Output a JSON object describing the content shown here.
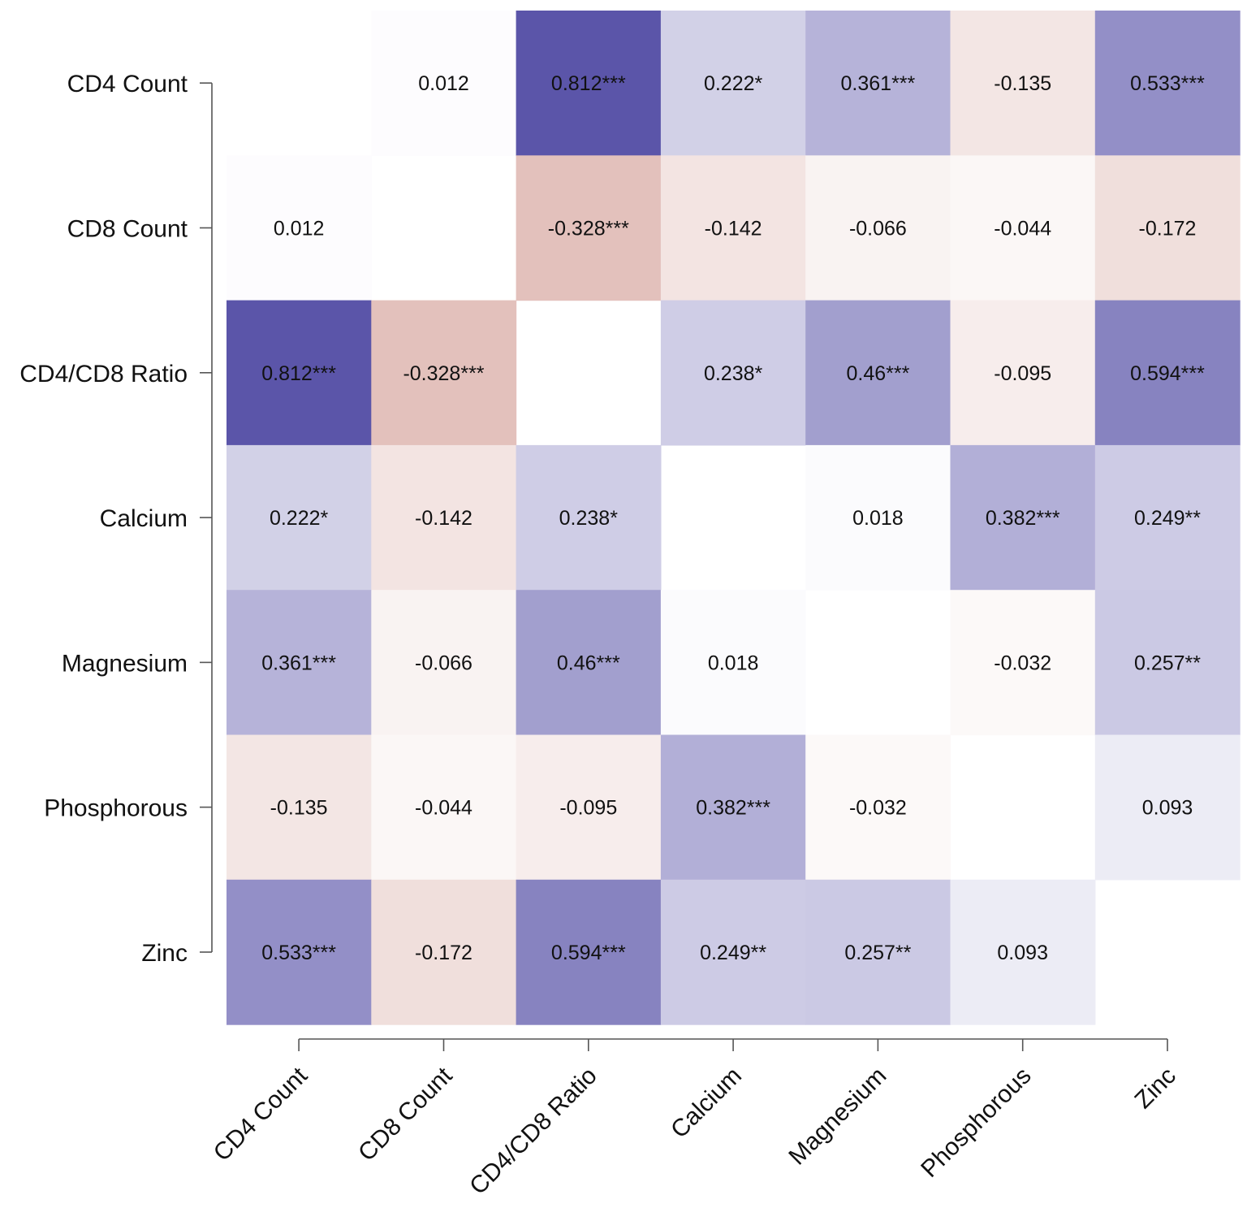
{
  "chart_data": {
    "type": "heatmap",
    "title": "",
    "xlabel": "",
    "ylabel": "",
    "variables": [
      "CD4 Count",
      "CD8 Count",
      "CD4/CD8 Ratio",
      "Calcium",
      "Magnesium",
      "Phosphorous",
      "Zinc"
    ],
    "values": [
      [
        null,
        0.012,
        0.812,
        0.222,
        0.361,
        -0.135,
        0.533
      ],
      [
        0.012,
        null,
        -0.328,
        -0.142,
        -0.066,
        -0.044,
        -0.172
      ],
      [
        0.812,
        -0.328,
        null,
        0.238,
        0.46,
        -0.095,
        0.594
      ],
      [
        0.222,
        -0.142,
        0.238,
        null,
        0.018,
        0.382,
        0.249
      ],
      [
        0.361,
        -0.066,
        0.46,
        0.018,
        null,
        -0.032,
        0.257
      ],
      [
        -0.135,
        -0.044,
        -0.095,
        0.382,
        -0.032,
        null,
        0.093
      ],
      [
        0.533,
        -0.172,
        0.594,
        0.249,
        0.257,
        0.093,
        null
      ]
    ],
    "labels": [
      [
        "",
        "0.012",
        "0.812***",
        "0.222*",
        "0.361***",
        "-0.135",
        "0.533***"
      ],
      [
        "0.012",
        "",
        "-0.328***",
        "-0.142",
        "-0.066",
        "-0.044",
        "-0.172"
      ],
      [
        "0.812***",
        "-0.328***",
        "",
        "0.238*",
        "0.46***",
        "-0.095",
        "0.594***"
      ],
      [
        "0.222*",
        "-0.142",
        "0.238*",
        "",
        "0.018",
        "0.382***",
        "0.249**"
      ],
      [
        "0.361***",
        "-0.066",
        "0.46***",
        "0.018",
        "",
        "-0.032",
        "0.257**"
      ],
      [
        "-0.135",
        "-0.044",
        "-0.095",
        "0.382***",
        "-0.032",
        "",
        "0.093"
      ],
      [
        "0.533***",
        "-0.172",
        "0.594***",
        "0.249**",
        "0.257**",
        "0.093",
        ""
      ]
    ],
    "color_scale": {
      "positive_max": "#5b55a9",
      "negative_max": "#b9665a",
      "neutral": "#ffffff",
      "range": [
        -1,
        1
      ]
    },
    "grid": false,
    "legend": "none"
  }
}
